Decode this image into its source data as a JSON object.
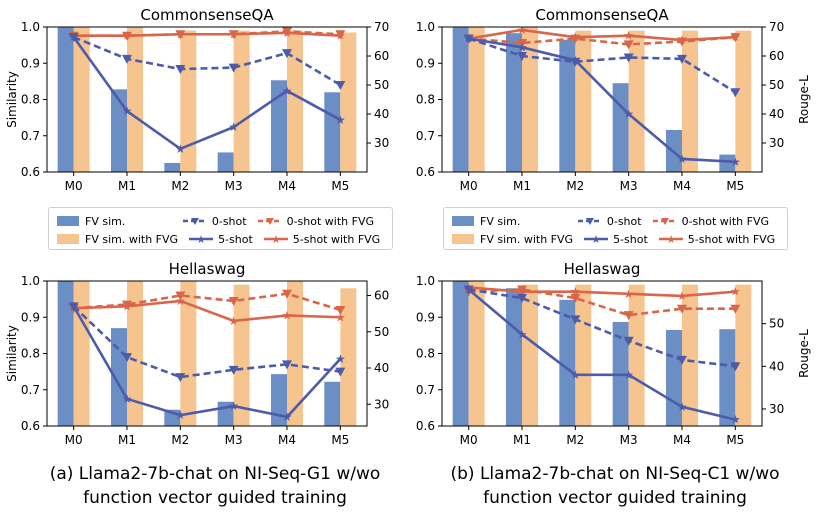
{
  "colors": {
    "fv_sim": "#6b8ec4",
    "fv_sim_fvg": "#f6c58f",
    "blue": "#4d5bab",
    "orange": "#d9664a"
  },
  "legend": {
    "fv_sim": "FV sim.",
    "fv_sim_fvg": "FV sim. with FVG",
    "zero_shot": "0-shot",
    "five_shot": "5-shot",
    "zero_shot_fvg": "0-shot with FVG",
    "five_shot_fvg": "5-shot with FVG"
  },
  "captions": {
    "a": [
      "(a) Llama2-7b-chat on NI-Seq-G1 w/wo",
      "function vector guided training"
    ],
    "b": [
      "(b) Llama2-7b-chat on NI-Seq-C1 w/wo",
      "function vector guided training"
    ]
  },
  "chart_data": [
    {
      "id": "a_top",
      "type": "bar+line",
      "title": "CommonsenseQA",
      "ylabel_left": "Similarity",
      "ylabel_right": "",
      "categories": [
        "M0",
        "M1",
        "M2",
        "M3",
        "M4",
        "M5"
      ],
      "ylim_left": [
        0.6,
        1.0
      ],
      "yticks_left": [
        0.6,
        0.7,
        0.8,
        0.9,
        1.0
      ],
      "ylim_right": [
        20,
        70
      ],
      "yticks_right": [
        30,
        40,
        50,
        60,
        70
      ],
      "bars": {
        "fv_sim": [
          1.0,
          0.828,
          0.625,
          0.654,
          0.853,
          0.82
        ],
        "fv_sim_fvg": [
          1.0,
          1.0,
          0.99,
          0.99,
          0.99,
          0.985
        ]
      },
      "lines": {
        "zero_shot": [
          66.5,
          59,
          55.5,
          56,
          61,
          50
        ],
        "five_shot": [
          66.5,
          41,
          28,
          35.5,
          48,
          38
        ],
        "zero_shot_fvg": [
          67,
          67,
          67.5,
          67.5,
          68.5,
          67.5
        ],
        "five_shot_fvg": [
          67,
          67,
          67.5,
          67.5,
          68,
          67
        ]
      }
    },
    {
      "id": "b_top",
      "type": "bar+line",
      "title": "CommonsenseQA",
      "ylabel_left": "",
      "ylabel_right": "Rouge-L",
      "categories": [
        "M0",
        "M1",
        "M2",
        "M3",
        "M4",
        "M5"
      ],
      "ylim_left": [
        0.6,
        1.0
      ],
      "yticks_left": [
        0.6,
        0.7,
        0.8,
        0.9,
        1.0
      ],
      "ylim_right": [
        20,
        70
      ],
      "yticks_right": [
        30,
        40,
        50,
        60,
        70
      ],
      "bars": {
        "fv_sim": [
          1.0,
          0.983,
          0.965,
          0.845,
          0.716,
          0.648
        ],
        "fv_sim_fvg": [
          1.0,
          1.0,
          0.99,
          0.99,
          0.99,
          0.99
        ]
      },
      "lines": {
        "zero_shot": [
          66,
          60,
          58,
          59.5,
          59,
          47.5
        ],
        "five_shot": [
          66,
          63,
          58.5,
          40,
          24.5,
          23.5
        ],
        "zero_shot_fvg": [
          66,
          64.5,
          66,
          64,
          65,
          66.5
        ],
        "five_shot_fvg": [
          66,
          69,
          66.5,
          67,
          65.5,
          66.5
        ]
      }
    },
    {
      "id": "a_bottom",
      "type": "bar+line",
      "title": "Hellaswag",
      "ylabel_left": "Similarity",
      "ylabel_right": "",
      "categories": [
        "M0",
        "M1",
        "M2",
        "M3",
        "M4",
        "M5"
      ],
      "ylim_left": [
        0.6,
        1.0
      ],
      "yticks_left": [
        0.6,
        0.7,
        0.8,
        0.9,
        1.0
      ],
      "ylim_right": [
        24,
        64
      ],
      "yticks_right": [
        30,
        40,
        50,
        60
      ],
      "bars": {
        "fv_sim": [
          1.0,
          0.87,
          0.645,
          0.667,
          0.743,
          0.722
        ],
        "fv_sim_fvg": [
          1.0,
          1.0,
          1.0,
          0.99,
          1.0,
          0.98
        ]
      },
      "lines": {
        "zero_shot": [
          57,
          43,
          37.5,
          39.5,
          41,
          39
        ],
        "five_shot": [
          57,
          31.5,
          27,
          29.5,
          26.5,
          42.5
        ],
        "zero_shot_fvg": [
          56.5,
          57.5,
          60,
          58.5,
          60.5,
          56
        ],
        "five_shot_fvg": [
          56.5,
          57,
          58.5,
          53,
          54.5,
          54
        ]
      }
    },
    {
      "id": "b_bottom",
      "type": "bar+line",
      "title": "Hellaswag",
      "ylabel_left": "",
      "ylabel_right": "Rouge-L",
      "categories": [
        "M0",
        "M1",
        "M2",
        "M3",
        "M4",
        "M5"
      ],
      "ylim_left": [
        0.6,
        1.0
      ],
      "yticks_left": [
        0.6,
        0.7,
        0.8,
        0.9,
        1.0
      ],
      "ylim_right": [
        26,
        60
      ],
      "yticks_right": [
        30,
        40,
        50
      ],
      "bars": {
        "fv_sim": [
          1.0,
          0.98,
          0.948,
          0.887,
          0.865,
          0.867
        ],
        "fv_sim_fvg": [
          1.0,
          0.99,
          0.99,
          0.99,
          0.99,
          0.99
        ]
      },
      "lines": {
        "zero_shot": [
          58,
          56,
          51,
          46,
          41.5,
          40
        ],
        "five_shot": [
          58,
          47.5,
          38,
          38,
          30.5,
          27.5
        ],
        "zero_shot_fvg": [
          57.5,
          58,
          56,
          52,
          53.5,
          53.5
        ],
        "five_shot_fvg": [
          58.5,
          57.5,
          57.5,
          57,
          56.5,
          57.5
        ]
      }
    }
  ]
}
